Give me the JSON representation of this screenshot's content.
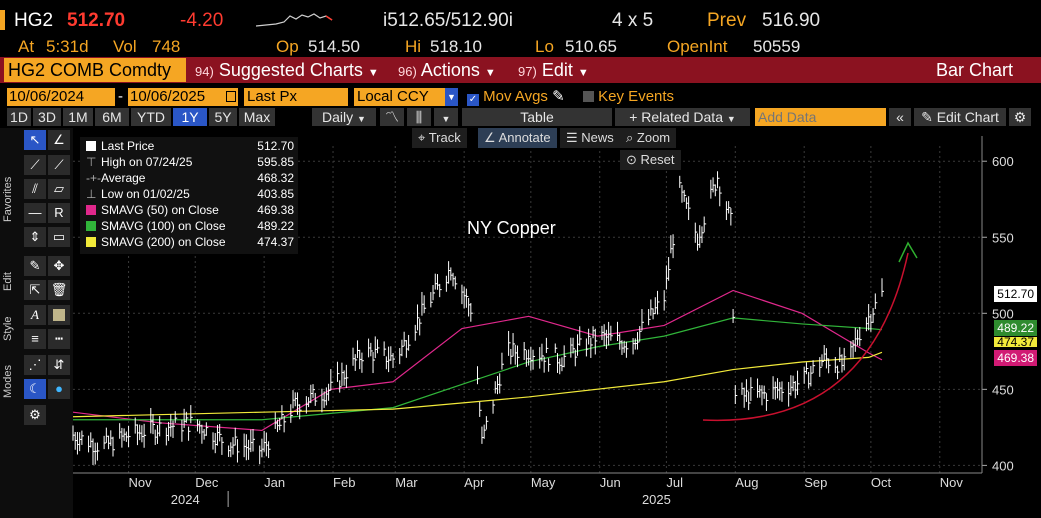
{
  "quote": {
    "ticker": "HG2",
    "last": "512.70",
    "change": "-4.20",
    "bid_ask": "i512.65/512.90i",
    "size": "4 x 5",
    "prev_label": "Prev",
    "prev": "516.90",
    "at_label": "At",
    "time": "5:31d",
    "vol_label": "Vol",
    "vol": "748",
    "op_label": "Op",
    "op": "514.50",
    "hi_label": "Hi",
    "hi": "518.10",
    "lo_label": "Lo",
    "lo": "510.65",
    "oi_label": "OpenInt",
    "oi": "50559"
  },
  "menu": {
    "security": "HG2 COMB Comdty",
    "suggested_num": "94)",
    "suggested": "Suggested Charts",
    "actions_num": "96)",
    "actions": "Actions",
    "edit_num": "97)",
    "edit": "Edit",
    "title": "Bar Chart"
  },
  "settings": {
    "start_date": "10/06/2024",
    "end_date": "10/06/2025",
    "field": "Last Px",
    "currency": "Local CCY",
    "mov_avgs": "Mov Avgs",
    "key_events": "Key Events"
  },
  "toolbar": {
    "ranges": [
      "1D",
      "3D",
      "1M",
      "6M",
      "YTD",
      "1Y",
      "5Y",
      "Max"
    ],
    "active_range": "1Y",
    "period": "Daily",
    "table": "Table",
    "related_data": "Related Data",
    "add_data_placeholder": "Add Data",
    "edit_chart": "Edit Chart"
  },
  "chart_controls": {
    "track": "Track",
    "annotate": "Annotate",
    "news": "News",
    "zoom": "Zoom",
    "reset": "Reset"
  },
  "side_labels": {
    "favorites": "Favorites",
    "edit": "Edit",
    "style": "Style",
    "modes": "Modes"
  },
  "legend": [
    {
      "label": "Last Price",
      "value": "512.70",
      "color": "#ffffff"
    },
    {
      "label": "High on 07/24/25",
      "value": "595.85",
      "color": ""
    },
    {
      "label": "Average",
      "value": "468.32",
      "color": ""
    },
    {
      "label": "Low on 01/02/25",
      "value": "403.85",
      "color": ""
    },
    {
      "label": "SMAVG (50)  on Close",
      "value": "469.38",
      "color": "#e0288c"
    },
    {
      "label": "SMAVG (100)  on Close",
      "value": "489.22",
      "color": "#31b53a"
    },
    {
      "label": "SMAVG (200)  on Close",
      "value": "474.37",
      "color": "#f2ea3a"
    }
  ],
  "price_tags": [
    {
      "value": "512.70",
      "bg": "#ffffff",
      "fg": "#000000"
    },
    {
      "value": "489.22",
      "bg": "#2e8b2e",
      "fg": "#ffffff"
    },
    {
      "value": "474.37",
      "bg": "#f2ea3a",
      "fg": "#000000"
    },
    {
      "value": "469.38",
      "bg": "#d11a74",
      "fg": "#ffffff"
    }
  ],
  "colors": {
    "accent": "#f5a623",
    "menu_bg": "#8b1220",
    "up": "#ffffff",
    "down": "#ff3b30",
    "active": "#2a56c6"
  },
  "chart_data": {
    "type": "line",
    "annotation": "NY Copper",
    "x_ticks": [
      "Nov",
      "Dec",
      "Jan",
      "Feb",
      "Mar",
      "Apr",
      "May",
      "Jun",
      "Jul",
      "Aug",
      "Sep",
      "Oct",
      "Nov"
    ],
    "year_labels": [
      "2024",
      "2025"
    ],
    "y_ticks": [
      400,
      450,
      500,
      550,
      600
    ],
    "ylim": [
      395,
      610
    ],
    "xlim": [
      "2024-10-07",
      "2025-11-20"
    ],
    "series": [
      {
        "name": "Last Price",
        "color": "#ffffff",
        "x": [
          "2024-10-07",
          "2024-10-20",
          "2024-11-01",
          "2024-11-15",
          "2024-12-01",
          "2024-12-15",
          "2024-12-31",
          "2025-01-15",
          "2025-01-31",
          "2025-02-15",
          "2025-03-01",
          "2025-03-15",
          "2025-03-26",
          "2025-04-05",
          "2025-04-09",
          "2025-04-20",
          "2025-05-01",
          "2025-05-15",
          "2025-05-31",
          "2025-06-15",
          "2025-06-30",
          "2025-07-07",
          "2025-07-15",
          "2025-07-24",
          "2025-07-30",
          "2025-08-01",
          "2025-08-15",
          "2025-08-31",
          "2025-09-10",
          "2025-09-20",
          "2025-09-25",
          "2025-10-01",
          "2025-10-06"
        ],
        "y": [
          420,
          412,
          420,
          425,
          428,
          415,
          410,
          440,
          450,
          475,
          470,
          505,
          530,
          500,
          415,
          475,
          475,
          470,
          485,
          480,
          510,
          580,
          550,
          590,
          560,
          445,
          447,
          455,
          470,
          465,
          485,
          500,
          512.7
        ]
      },
      {
        "name": "SMAVG (50)",
        "color": "#e0288c",
        "x": [
          "2024-10-07",
          "2024-11-15",
          "2024-12-31",
          "2025-01-31",
          "2025-02-28",
          "2025-03-31",
          "2025-04-30",
          "2025-05-31",
          "2025-06-30",
          "2025-07-31",
          "2025-08-31",
          "2025-09-30",
          "2025-10-06"
        ],
        "y": [
          435,
          428,
          423,
          450,
          455,
          490,
          498,
          485,
          492,
          515,
          500,
          474,
          469.38
        ]
      },
      {
        "name": "SMAVG (100)",
        "color": "#31b53a",
        "x": [
          "2024-10-07",
          "2024-12-31",
          "2025-02-28",
          "2025-04-30",
          "2025-05-31",
          "2025-06-30",
          "2025-07-31",
          "2025-08-31",
          "2025-09-30",
          "2025-10-06"
        ],
        "y": [
          430,
          430,
          438,
          468,
          478,
          485,
          497,
          493,
          490,
          489.22
        ]
      },
      {
        "name": "SMAVG (200)",
        "color": "#f2ea3a",
        "x": [
          "2024-10-07",
          "2024-12-31",
          "2025-02-28",
          "2025-04-30",
          "2025-06-30",
          "2025-07-31",
          "2025-08-31",
          "2025-09-30",
          "2025-10-06"
        ],
        "y": [
          432,
          435,
          437,
          445,
          455,
          463,
          468,
          471,
          474.37
        ]
      }
    ]
  }
}
